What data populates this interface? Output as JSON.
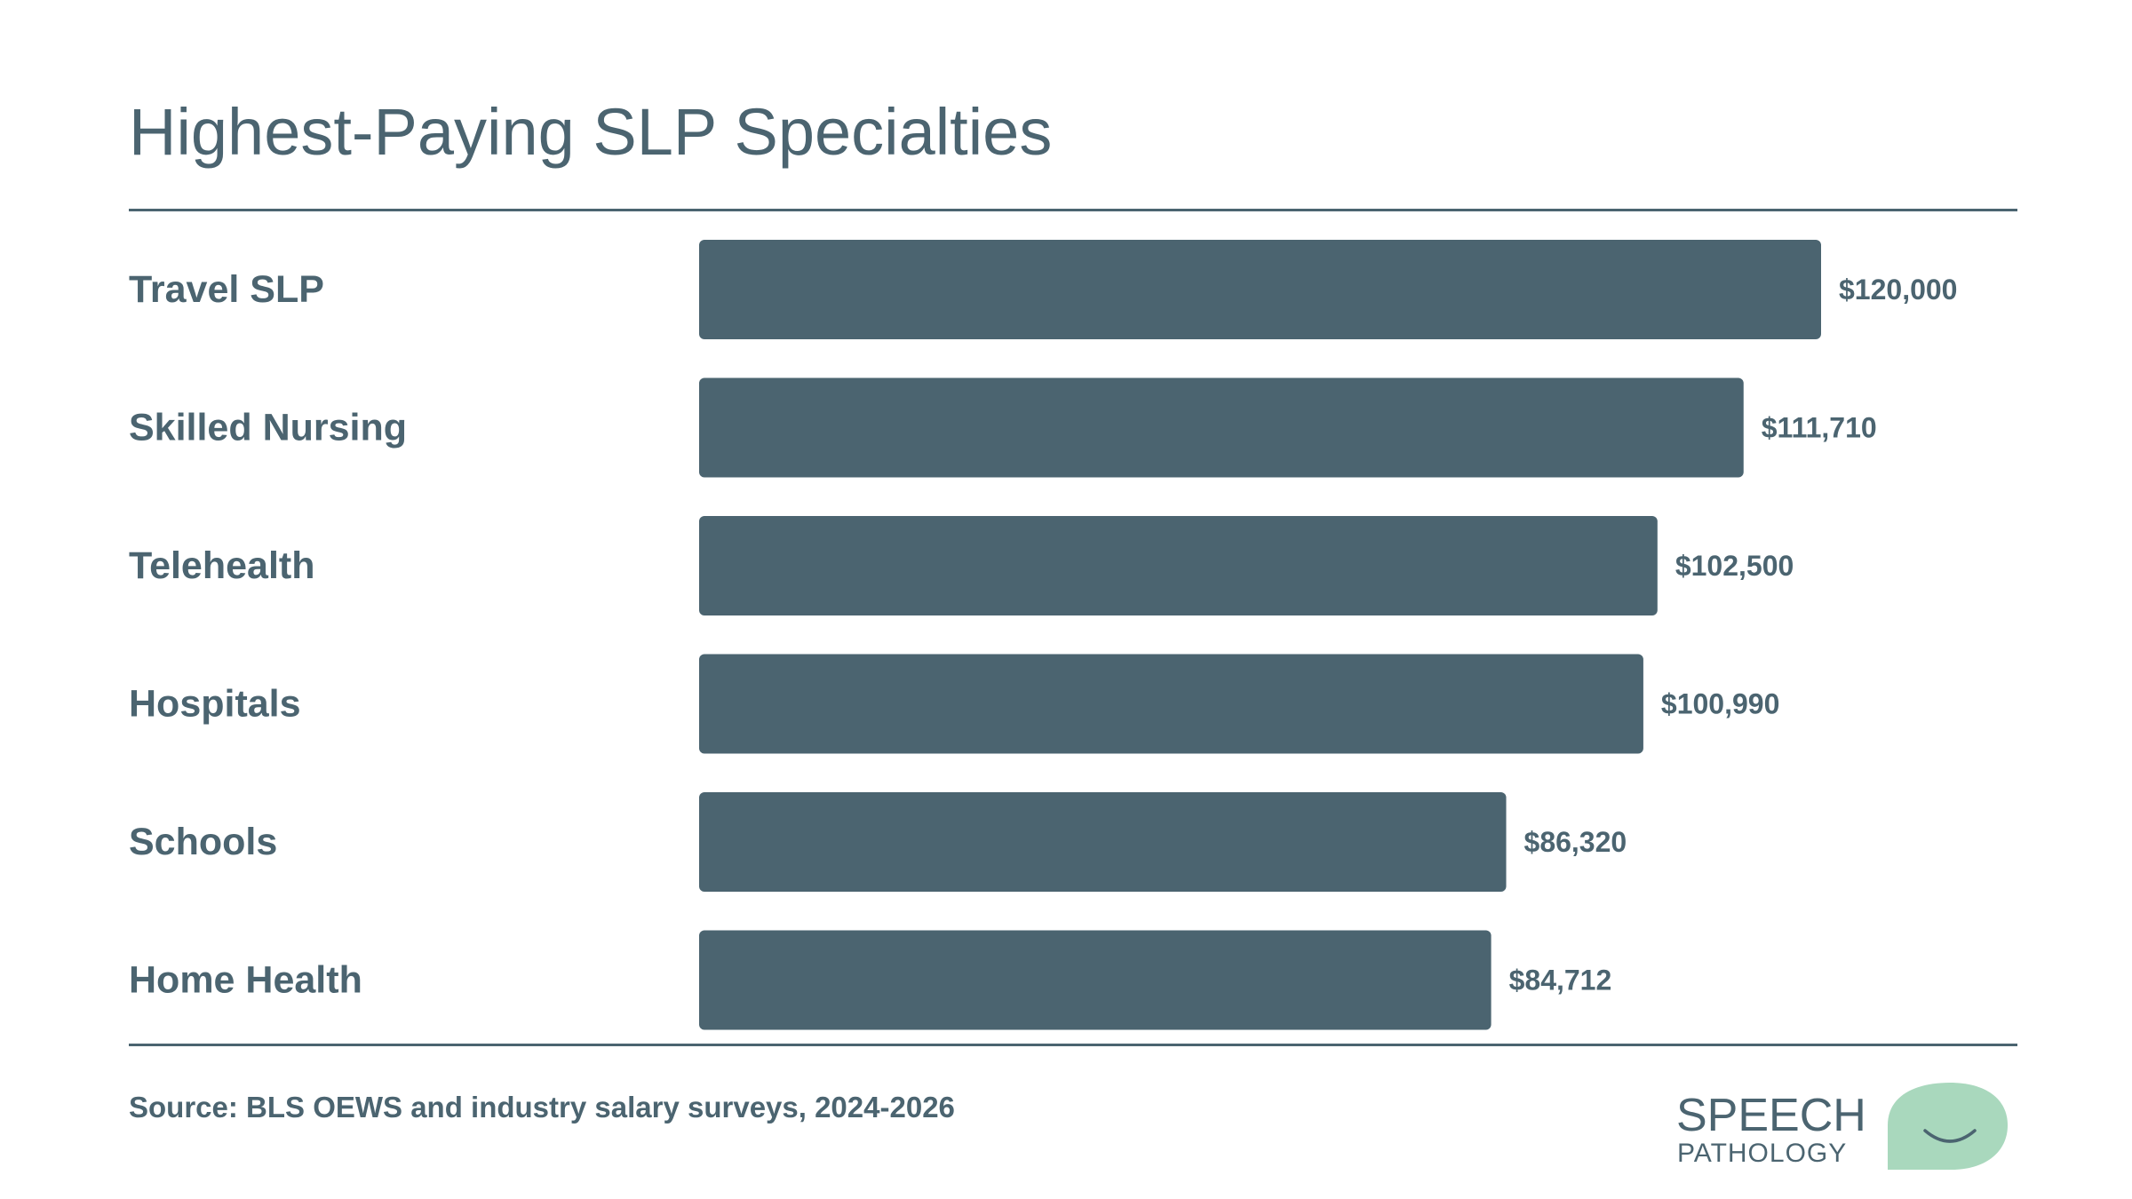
{
  "chart_data": {
    "type": "bar",
    "orientation": "horizontal",
    "title": "Highest-Paying SLP Specialties",
    "categories": [
      "Travel SLP",
      "Skilled Nursing",
      "Telehealth",
      "Hospitals",
      "Schools",
      "Home Health"
    ],
    "values": [
      120000,
      111710,
      102500,
      100990,
      86320,
      84712
    ],
    "value_labels": [
      "$120,000",
      "$111,710",
      "$102,500",
      "$100,990",
      "$86,320",
      "$84,712"
    ],
    "xlim": [
      0,
      120000
    ],
    "grid": false,
    "legend": "none",
    "bar_color": "#4b6470"
  },
  "footer": {
    "source": "Source: BLS OEWS and industry salary surveys, 2024-2026"
  },
  "brand": {
    "line1": "SPEECH",
    "line2": "PATHOLOGY",
    "icon": "speech-bubble-smile-icon",
    "accent_color": "#a9d8bd",
    "text_color": "#4b6470"
  }
}
